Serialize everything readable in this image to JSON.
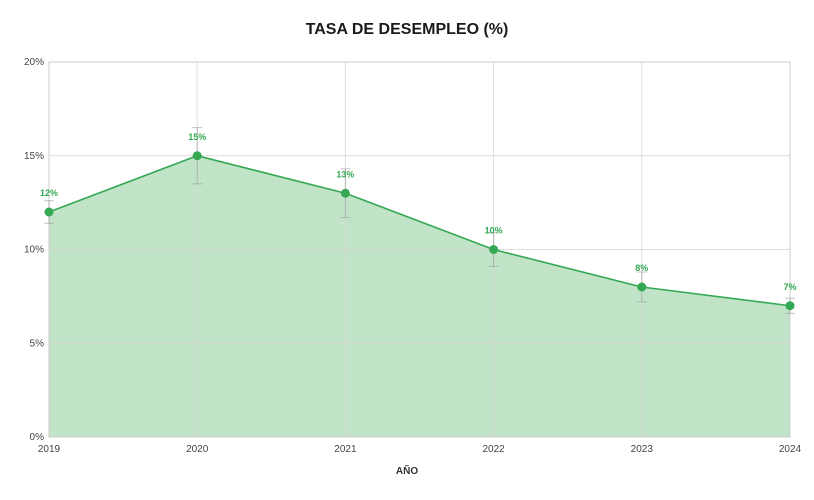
{
  "chart_data": {
    "type": "area",
    "title": "TASA DE DESEMPLEO (%)",
    "xlabel": "AÑO",
    "ylabel": "",
    "x": [
      "2019",
      "2020",
      "2021",
      "2022",
      "2023",
      "2024"
    ],
    "series": [
      {
        "values": [
          12,
          15,
          13,
          10,
          8,
          7
        ],
        "data_labels": [
          "12%",
          "15%",
          "13%",
          "10%",
          "8%",
          "7%"
        ],
        "error_low": [
          11.4,
          13.5,
          11.7,
          9.1,
          7.2,
          6.6
        ],
        "error_high": [
          12.6,
          16.5,
          14.3,
          10.9,
          8.8,
          7.4
        ]
      }
    ],
    "ylim": [
      0,
      20
    ],
    "yticks": [
      0,
      5,
      10,
      15,
      20
    ],
    "ytick_labels": [
      "0%",
      "5%",
      "10%",
      "15%",
      "20%"
    ],
    "grid": true,
    "colors": {
      "line": "#34a853",
      "fill": "#c1e4c8",
      "marker": "#34a853",
      "label": "#34a853",
      "grid": "#d6d6d6"
    }
  }
}
